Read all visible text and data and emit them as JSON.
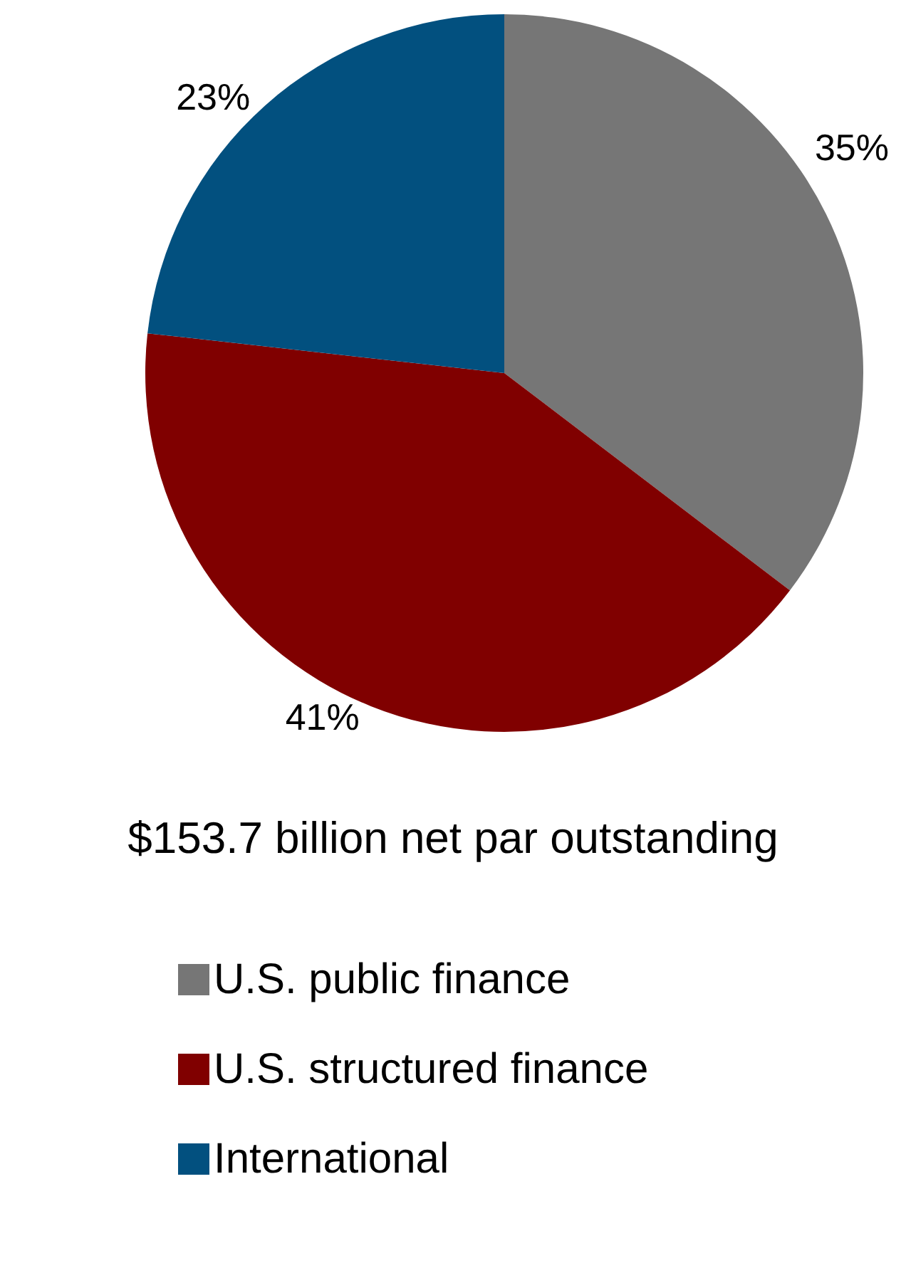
{
  "chart_data": {
    "type": "pie",
    "title": "$153.7 billion net par outstanding",
    "categories": [
      "U.S. public finance",
      "U.S. structured finance",
      "International"
    ],
    "values": [
      35,
      41,
      23
    ],
    "colors": [
      "#767676",
      "#800000",
      "#02507f"
    ],
    "value_labels": [
      "35%",
      "41%",
      "23%"
    ],
    "legend": "bottom"
  }
}
